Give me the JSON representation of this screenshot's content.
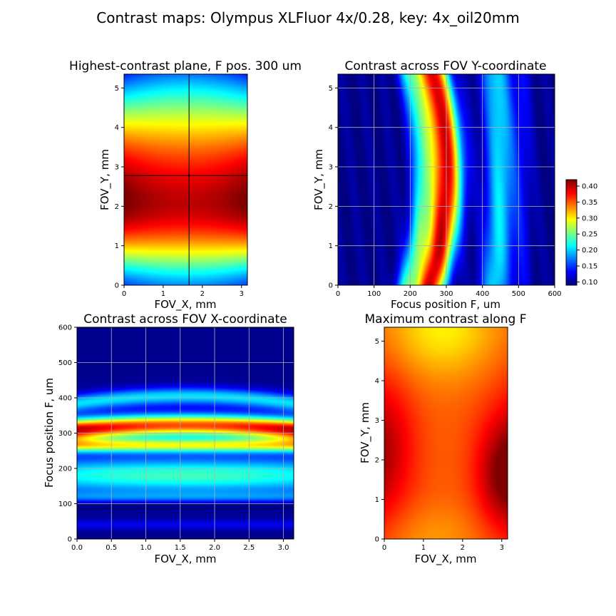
{
  "figure": {
    "title": "Contrast maps: Olympus XLFluor 4x/0.28, key: 4x_oil20mm"
  },
  "colors": {
    "colormap": "jet",
    "gridline": "#b0b0b0",
    "crosshair": "#000000"
  },
  "chart_data": [
    {
      "id": "p1",
      "type": "heatmap",
      "title": "Highest-contrast plane, F pos. 300 um",
      "xlabel": "FOV_X, mm",
      "ylabel": "FOV_Y, mm",
      "xlim": [
        0,
        3.15
      ],
      "ylim": [
        0,
        5.35
      ],
      "xticks": [
        0,
        1,
        2,
        3
      ],
      "yticks": [
        0,
        1,
        2,
        3,
        4,
        5
      ],
      "xtick_labels": [
        "0",
        "1",
        "2",
        "3"
      ],
      "ytick_labels": [
        "0",
        "1",
        "2",
        "3",
        "4",
        "5"
      ],
      "grid": false,
      "crosshair": {
        "x": 1.66,
        "y": 2.78
      },
      "field": "highest-contrast plane: peak ~0.40 at Y≈2.1, falling to ~0.18 at Y=0 and ~0.17 at Y=5.35; darker (higher) near left/right edges"
    },
    {
      "id": "p2",
      "type": "heatmap",
      "title": "Contrast across FOV Y-coordinate",
      "xlabel": "Focus position F, um",
      "ylabel": "FOV_Y, mm",
      "xlim": [
        0,
        600
      ],
      "ylim": [
        0,
        5.35
      ],
      "xticks": [
        0,
        100,
        200,
        300,
        400,
        500,
        600
      ],
      "yticks": [
        0,
        1,
        2,
        3,
        4,
        5
      ],
      "xtick_labels": [
        "0",
        "100",
        "200",
        "300",
        "400",
        "500",
        "600"
      ],
      "ytick_labels": [
        "0",
        "1",
        "2",
        "3",
        "4",
        "5"
      ],
      "grid": true,
      "colorbar": {
        "min": 0.09,
        "max": 0.42,
        "ticks": [
          0.1,
          0.15,
          0.2,
          0.25,
          0.3,
          0.35,
          0.4
        ],
        "tick_labels": [
          "0.10",
          "0.15",
          "0.20",
          "0.25",
          "0.30",
          "0.35",
          "0.40"
        ]
      },
      "field": "main peak ~0.40 along curved ridge at F≈270–300 (curving right toward Y center), secondary band ~0.22 at F≈420–460, background ~0.10"
    },
    {
      "id": "p3",
      "type": "heatmap",
      "title": "Contrast across FOV X-coordinate",
      "xlabel": "FOV_X, mm",
      "ylabel": "Focus position F, um",
      "xlim": [
        0,
        3.15
      ],
      "ylim": [
        0,
        600
      ],
      "xticks": [
        0,
        0.5,
        1.0,
        1.5,
        2.0,
        2.5,
        3.0
      ],
      "yticks": [
        0,
        100,
        200,
        300,
        400,
        500,
        600
      ],
      "xtick_labels": [
        "0.0",
        "0.5",
        "1.0",
        "1.5",
        "2.0",
        "2.5",
        "3.0"
      ],
      "ytick_labels": [
        "0",
        "100",
        "200",
        "300",
        "400",
        "500",
        "600"
      ],
      "grid": true,
      "field": "horizontal bands: peak ~0.41 at F≈305 (edges) curving up, second band ~0.30 at F≈270, cyan ~0.22 at F≈180, lows near F=10–80 and F≥450"
    },
    {
      "id": "p4",
      "type": "heatmap",
      "title": "Maximum contrast along F",
      "xlabel": "FOV_X, mm",
      "ylabel": "FOV_Y, mm",
      "xlim": [
        0,
        3.15
      ],
      "ylim": [
        0,
        5.35
      ],
      "xticks": [
        0,
        1,
        2,
        3
      ],
      "yticks": [
        0,
        1,
        2,
        3,
        4,
        5
      ],
      "xtick_labels": [
        "0",
        "1",
        "2",
        "3"
      ],
      "ytick_labels": [
        "0",
        "1",
        "2",
        "3",
        "4",
        "5"
      ],
      "grid": false,
      "field": "max contrast: ~0.35–0.42 over most of field, darkest at right edge around Y≈1.5–2, yellow (~0.30) at top center"
    }
  ]
}
